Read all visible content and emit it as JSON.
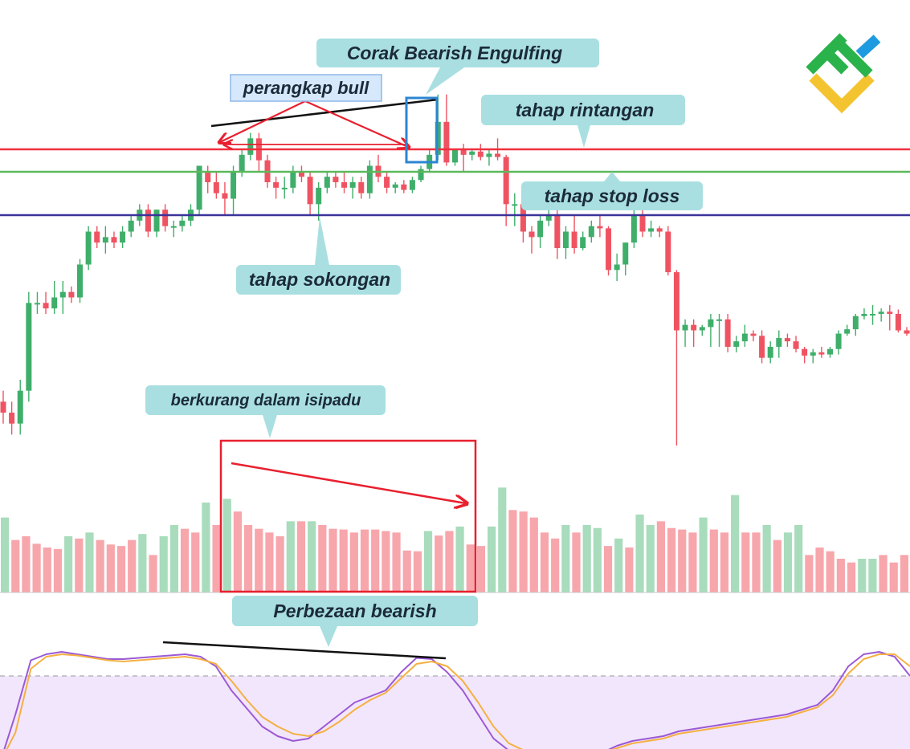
{
  "annotations": {
    "engulfing": "Corak Bearish Engulfing",
    "bull_trap": "perangkap bull",
    "resistance": "tahap rintangan",
    "stop_loss": "tahap stop loss",
    "support": "tahap sokongan",
    "volume_decrease": "berkurang dalam isipadu",
    "divergence": "Perbezaan bearish"
  },
  "colors": {
    "bull": "#26a69a",
    "bull_candle": "#3fae6a",
    "bear_candle": "#ef5362",
    "bull_volume": "#a8dcbc",
    "bear_volume": "#f7a6ac",
    "resistance_line": "#f0303e",
    "stop_loss_line": "#5cb85c",
    "support_line": "#3a3399",
    "callout_bg": "#a9dfe0",
    "oscillator_k": "#9b59d6",
    "oscillator_d": "#f5b041",
    "oscillator_zone": "#f1e6fb",
    "highlight_box": "#2b86d1",
    "volume_box": "#e8202f"
  },
  "logo": {
    "name": "brand-logo-icon",
    "colors": [
      "#2ab24b",
      "#f4c430",
      "#1e9be0"
    ]
  },
  "chart_data": [
    {
      "type": "candlestick",
      "title": "",
      "levels": {
        "resistance": 84.0,
        "stop_loss": 82.0,
        "support": 78.0
      },
      "ylim": [
        50,
        100
      ],
      "candles": [
        {
          "o": 61,
          "h": 62,
          "l": 59,
          "c": 60
        },
        {
          "o": 60,
          "h": 61,
          "l": 58,
          "c": 59
        },
        {
          "o": 59,
          "h": 63,
          "l": 58,
          "c": 62
        },
        {
          "o": 62,
          "h": 71,
          "l": 61,
          "c": 70
        },
        {
          "o": 70,
          "h": 71,
          "l": 69,
          "c": 70
        },
        {
          "o": 70,
          "h": 71,
          "l": 69,
          "c": 69.5
        },
        {
          "o": 69.5,
          "h": 72,
          "l": 69,
          "c": 70.5
        },
        {
          "o": 70.5,
          "h": 72,
          "l": 69,
          "c": 71
        },
        {
          "o": 71,
          "h": 71.5,
          "l": 70,
          "c": 70.5
        },
        {
          "o": 70.5,
          "h": 74,
          "l": 70,
          "c": 73.5
        },
        {
          "o": 73.5,
          "h": 77,
          "l": 73,
          "c": 76.5
        },
        {
          "o": 76.5,
          "h": 77,
          "l": 75,
          "c": 75.5
        },
        {
          "o": 75.5,
          "h": 77,
          "l": 74.5,
          "c": 76
        },
        {
          "o": 76,
          "h": 76.5,
          "l": 75,
          "c": 75.5
        },
        {
          "o": 75.5,
          "h": 77,
          "l": 75,
          "c": 76.5
        },
        {
          "o": 76.5,
          "h": 78,
          "l": 76,
          "c": 77.5
        },
        {
          "o": 77.5,
          "h": 79,
          "l": 77,
          "c": 78.5
        },
        {
          "o": 78.5,
          "h": 79,
          "l": 76,
          "c": 76.5
        },
        {
          "o": 76.5,
          "h": 78.5,
          "l": 76,
          "c": 78.5
        },
        {
          "o": 78.5,
          "h": 79,
          "l": 76.5,
          "c": 77
        },
        {
          "o": 77,
          "h": 77.5,
          "l": 76,
          "c": 77
        },
        {
          "o": 77,
          "h": 78,
          "l": 76.5,
          "c": 77.5
        },
        {
          "o": 77.5,
          "h": 79,
          "l": 77,
          "c": 78.5
        },
        {
          "o": 78.5,
          "h": 82.5,
          "l": 78,
          "c": 82.5
        },
        {
          "o": 82,
          "h": 82.5,
          "l": 80,
          "c": 81
        },
        {
          "o": 81,
          "h": 82,
          "l": 79.5,
          "c": 80
        },
        {
          "o": 80,
          "h": 81,
          "l": 78,
          "c": 79.5
        },
        {
          "o": 79.5,
          "h": 82.5,
          "l": 78,
          "c": 82
        },
        {
          "o": 82,
          "h": 84,
          "l": 81.5,
          "c": 83.5
        },
        {
          "o": 83.5,
          "h": 85.5,
          "l": 83,
          "c": 85
        },
        {
          "o": 85,
          "h": 85.5,
          "l": 82,
          "c": 83
        },
        {
          "o": 83,
          "h": 83.5,
          "l": 80.5,
          "c": 81
        },
        {
          "o": 81,
          "h": 81.5,
          "l": 79.5,
          "c": 80.5
        },
        {
          "o": 80.5,
          "h": 81.5,
          "l": 79.5,
          "c": 80.5
        },
        {
          "o": 80.5,
          "h": 82.5,
          "l": 80,
          "c": 82
        },
        {
          "o": 82,
          "h": 82.5,
          "l": 81,
          "c": 81.5
        },
        {
          "o": 81.5,
          "h": 82,
          "l": 78,
          "c": 79
        },
        {
          "o": 79,
          "h": 81,
          "l": 77.5,
          "c": 80.5
        },
        {
          "o": 80.5,
          "h": 82,
          "l": 80,
          "c": 81.5
        },
        {
          "o": 81.5,
          "h": 82,
          "l": 80.5,
          "c": 81
        },
        {
          "o": 81,
          "h": 82,
          "l": 80,
          "c": 80.5
        },
        {
          "o": 80.5,
          "h": 81.5,
          "l": 79.5,
          "c": 81
        },
        {
          "o": 81,
          "h": 81.5,
          "l": 79.5,
          "c": 80
        },
        {
          "o": 80,
          "h": 83,
          "l": 79.5,
          "c": 82.5
        },
        {
          "o": 82.5,
          "h": 83.5,
          "l": 81,
          "c": 81.5
        },
        {
          "o": 81.5,
          "h": 82,
          "l": 80,
          "c": 80.5
        },
        {
          "o": 80.5,
          "h": 81,
          "l": 80,
          "c": 80.8
        },
        {
          "o": 80.8,
          "h": 81.2,
          "l": 80,
          "c": 80.3
        },
        {
          "o": 80.3,
          "h": 81.5,
          "l": 80,
          "c": 81.2
        },
        {
          "o": 81.2,
          "h": 82.5,
          "l": 81,
          "c": 82.2
        },
        {
          "o": 82.2,
          "h": 84,
          "l": 82,
          "c": 83.5
        },
        {
          "o": 83.5,
          "h": 89,
          "l": 83,
          "c": 86.5
        },
        {
          "o": 86.5,
          "h": 89,
          "l": 82.5,
          "c": 82.8
        },
        {
          "o": 82.8,
          "h": 84,
          "l": 82.5,
          "c": 84
        },
        {
          "o": 84,
          "h": 84.5,
          "l": 82,
          "c": 83.5
        },
        {
          "o": 83.5,
          "h": 84,
          "l": 83,
          "c": 83.8
        },
        {
          "o": 83.8,
          "h": 84.5,
          "l": 83,
          "c": 83.3
        },
        {
          "o": 83.3,
          "h": 84,
          "l": 82.5,
          "c": 83.6
        },
        {
          "o": 83.6,
          "h": 85,
          "l": 83,
          "c": 83.3
        },
        {
          "o": 83.3,
          "h": 83.5,
          "l": 77,
          "c": 79
        },
        {
          "o": 79,
          "h": 80,
          "l": 77,
          "c": 79
        },
        {
          "o": 79,
          "h": 80,
          "l": 75.5,
          "c": 76.5
        },
        {
          "o": 76.5,
          "h": 77,
          "l": 74.5,
          "c": 76
        },
        {
          "o": 76,
          "h": 78,
          "l": 75,
          "c": 77.5
        },
        {
          "o": 77.5,
          "h": 78.5,
          "l": 77,
          "c": 78
        },
        {
          "o": 78,
          "h": 78.5,
          "l": 74,
          "c": 75
        },
        {
          "o": 75,
          "h": 77,
          "l": 74,
          "c": 76.5
        },
        {
          "o": 76.5,
          "h": 78,
          "l": 74.5,
          "c": 75
        },
        {
          "o": 75,
          "h": 76.5,
          "l": 74.8,
          "c": 76
        },
        {
          "o": 76,
          "h": 77.5,
          "l": 75.5,
          "c": 77
        },
        {
          "o": 77,
          "h": 78,
          "l": 76,
          "c": 76.8
        },
        {
          "o": 76.8,
          "h": 77,
          "l": 72.5,
          "c": 73
        },
        {
          "o": 73,
          "h": 74.5,
          "l": 72,
          "c": 73.5
        },
        {
          "o": 73.5,
          "h": 75.5,
          "l": 72.5,
          "c": 75.5
        },
        {
          "o": 75.5,
          "h": 78.5,
          "l": 75,
          "c": 78
        },
        {
          "o": 78,
          "h": 79,
          "l": 76,
          "c": 76.5
        },
        {
          "o": 76.5,
          "h": 77.5,
          "l": 76,
          "c": 76.8
        },
        {
          "o": 76.8,
          "h": 77,
          "l": 76,
          "c": 76.5
        },
        {
          "o": 76.5,
          "h": 77,
          "l": 72.5,
          "c": 72.8
        },
        {
          "o": 72.8,
          "h": 73,
          "l": 57,
          "c": 67.5
        },
        {
          "o": 67.5,
          "h": 68.5,
          "l": 66,
          "c": 68
        },
        {
          "o": 68,
          "h": 68.5,
          "l": 66,
          "c": 67.5
        },
        {
          "o": 67.5,
          "h": 68,
          "l": 67,
          "c": 67.8
        },
        {
          "o": 67.8,
          "h": 69,
          "l": 66,
          "c": 68.5
        },
        {
          "o": 68.5,
          "h": 69,
          "l": 66,
          "c": 68.5
        },
        {
          "o": 68.5,
          "h": 69,
          "l": 65.5,
          "c": 66
        },
        {
          "o": 66,
          "h": 67,
          "l": 65.5,
          "c": 66.5
        },
        {
          "o": 66.5,
          "h": 68,
          "l": 66,
          "c": 67.2
        },
        {
          "o": 67.2,
          "h": 67.5,
          "l": 66.5,
          "c": 67
        },
        {
          "o": 67,
          "h": 67.5,
          "l": 64.5,
          "c": 65
        },
        {
          "o": 65,
          "h": 66.5,
          "l": 64.5,
          "c": 66
        },
        {
          "o": 66,
          "h": 67.5,
          "l": 65,
          "c": 66.8
        },
        {
          "o": 66.8,
          "h": 67.2,
          "l": 66,
          "c": 66.5
        },
        {
          "o": 66.5,
          "h": 67,
          "l": 65.5,
          "c": 65.8
        },
        {
          "o": 65.8,
          "h": 66,
          "l": 64.5,
          "c": 65.2
        },
        {
          "o": 65.2,
          "h": 65.8,
          "l": 64.5,
          "c": 65.5
        },
        {
          "o": 65.5,
          "h": 66,
          "l": 65,
          "c": 65.3
        },
        {
          "o": 65.3,
          "h": 66,
          "l": 65,
          "c": 65.8
        },
        {
          "o": 65.8,
          "h": 67.5,
          "l": 65.3,
          "c": 67.2
        },
        {
          "o": 67.2,
          "h": 68,
          "l": 67,
          "c": 67.6
        },
        {
          "o": 67.6,
          "h": 69,
          "l": 67,
          "c": 68.8
        },
        {
          "o": 68.8,
          "h": 69.5,
          "l": 68.5,
          "c": 69
        },
        {
          "o": 69,
          "h": 69.8,
          "l": 68,
          "c": 69
        },
        {
          "o": 69,
          "h": 69.5,
          "l": 68.3,
          "c": 69.2
        },
        {
          "o": 69.2,
          "h": 69.8,
          "l": 67.5,
          "c": 69
        },
        {
          "o": 69,
          "h": 69.4,
          "l": 67.3,
          "c": 67.5
        },
        {
          "o": 67.5,
          "h": 67.8,
          "l": 67,
          "c": 67.2
        }
      ]
    },
    {
      "type": "bar",
      "title": "",
      "ylim": [
        0,
        150
      ],
      "values": [
        100,
        70,
        75,
        65,
        60,
        58,
        75,
        72,
        80,
        70,
        64,
        62,
        70,
        78,
        50,
        75,
        90,
        85,
        80,
        120,
        90,
        125,
        108,
        90,
        85,
        80,
        75,
        95,
        95,
        95,
        90,
        85,
        84,
        80,
        84,
        84,
        82,
        80,
        56,
        55,
        82,
        76,
        82,
        88,
        64,
        62,
        88,
        140,
        110,
        108,
        100,
        80,
        72,
        90,
        80,
        90,
        86,
        62,
        72,
        60,
        104,
        90,
        95,
        86,
        84,
        80,
        100,
        84,
        80,
        130,
        80,
        80,
        90,
        70,
        80,
        90,
        50,
        60,
        55,
        45,
        40,
        45,
        45,
        50,
        40,
        50
      ],
      "up": [
        true,
        false,
        false,
        false,
        false,
        false,
        true,
        false,
        true,
        false,
        false,
        false,
        false,
        true,
        false,
        true,
        true,
        false,
        false,
        true,
        false,
        true,
        false,
        false,
        false,
        false,
        false,
        true,
        false,
        true,
        false,
        false,
        false,
        false,
        false,
        false,
        false,
        false,
        false,
        false,
        true,
        false,
        false,
        true,
        false,
        false,
        true,
        true,
        false,
        false,
        false,
        false,
        false,
        true,
        false,
        true,
        true,
        false,
        true,
        false,
        true,
        true,
        false,
        false,
        false,
        false,
        true,
        false,
        false,
        true,
        false,
        false,
        true,
        false,
        true,
        true,
        false,
        false,
        false,
        false,
        false,
        true,
        true,
        false,
        false,
        false
      ]
    },
    {
      "type": "line",
      "title": "",
      "ylim": [
        0,
        100
      ],
      "threshold": 80,
      "series": [
        {
          "values": [
            0,
            40,
            85,
            90,
            92,
            90,
            88,
            86,
            86,
            87,
            88,
            89,
            90,
            88,
            80,
            60,
            45,
            30,
            22,
            18,
            20,
            30,
            40,
            50,
            55,
            60,
            75,
            87,
            86,
            75,
            60,
            40,
            20,
            10,
            6,
            4,
            2,
            3,
            5,
            8,
            14,
            18,
            20,
            22,
            26,
            28,
            30,
            32,
            34,
            36,
            38,
            40,
            44,
            48,
            60,
            80,
            90,
            92,
            88,
            72
          ]
        },
        {
          "values": [
            0,
            25,
            78,
            88,
            90,
            89,
            87,
            85,
            84,
            85,
            86,
            87,
            88,
            86,
            82,
            68,
            52,
            38,
            30,
            24,
            22,
            26,
            34,
            44,
            52,
            58,
            70,
            82,
            84,
            80,
            68,
            50,
            30,
            16,
            10,
            6,
            4,
            4,
            6,
            8,
            12,
            16,
            18,
            20,
            24,
            26,
            28,
            30,
            32,
            34,
            36,
            38,
            42,
            46,
            56,
            74,
            86,
            90,
            90,
            80
          ]
        }
      ]
    }
  ]
}
